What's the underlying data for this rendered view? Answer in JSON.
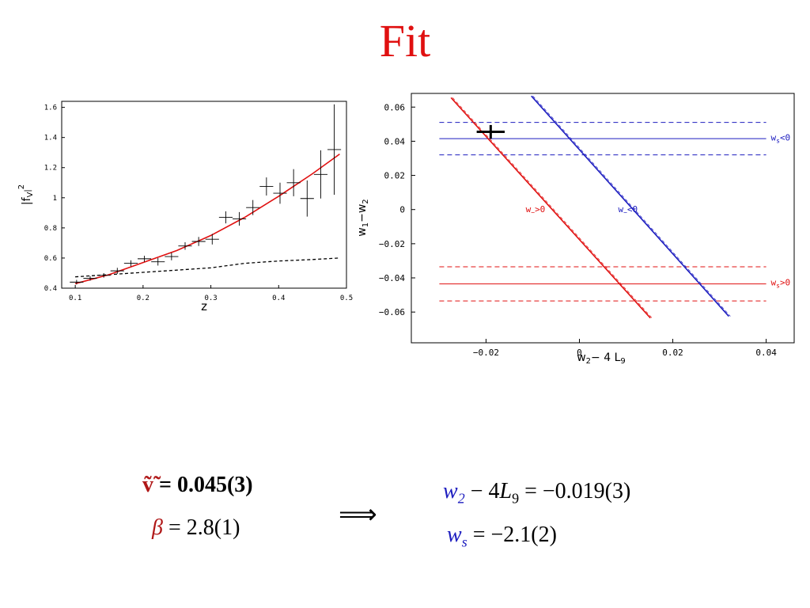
{
  "title": "Fit",
  "chart_data": [
    {
      "type": "scatter",
      "xlabel": "z",
      "ylabel": "|f_V|^2",
      "ylabel_main": "|f",
      "ylabel_sub": "V",
      "ylabel_sup": "2",
      "xlim": [
        0.08,
        0.5
      ],
      "ylim": [
        0.4,
        1.64
      ],
      "xticks": [
        0.1,
        0.2,
        0.3,
        0.4,
        0.5
      ],
      "xtick_labels": [
        "0.1",
        "0.2",
        "0.3",
        "0.4",
        "0.5"
      ],
      "yticks": [
        0.4,
        0.6,
        0.8,
        1.0,
        1.2,
        1.4,
        1.6
      ],
      "ytick_labels": [
        "0.4",
        "0.6",
        "0.8",
        "1",
        "1.2",
        "1.4",
        "1.6"
      ],
      "grid": false,
      "colors": {
        "fit": "#e01010",
        "data": "#000000",
        "dashed": "#000000"
      },
      "points": [
        {
          "x": 0.102,
          "y": 0.44,
          "ey": 0.015,
          "ex": 0.01
        },
        {
          "x": 0.122,
          "y": 0.465,
          "ey": 0.015,
          "ex": 0.01
        },
        {
          "x": 0.142,
          "y": 0.485,
          "ey": 0.015,
          "ex": 0.01
        },
        {
          "x": 0.162,
          "y": 0.515,
          "ey": 0.02,
          "ex": 0.01
        },
        {
          "x": 0.182,
          "y": 0.565,
          "ey": 0.02,
          "ex": 0.01
        },
        {
          "x": 0.202,
          "y": 0.595,
          "ey": 0.02,
          "ex": 0.01
        },
        {
          "x": 0.222,
          "y": 0.575,
          "ey": 0.025,
          "ex": 0.01
        },
        {
          "x": 0.242,
          "y": 0.61,
          "ey": 0.025,
          "ex": 0.01
        },
        {
          "x": 0.262,
          "y": 0.68,
          "ey": 0.025,
          "ex": 0.01
        },
        {
          "x": 0.282,
          "y": 0.71,
          "ey": 0.03,
          "ex": 0.01
        },
        {
          "x": 0.302,
          "y": 0.725,
          "ey": 0.035,
          "ex": 0.01
        },
        {
          "x": 0.322,
          "y": 0.87,
          "ey": 0.04,
          "ex": 0.01
        },
        {
          "x": 0.342,
          "y": 0.86,
          "ey": 0.045,
          "ex": 0.01
        },
        {
          "x": 0.362,
          "y": 0.935,
          "ey": 0.05,
          "ex": 0.01
        },
        {
          "x": 0.382,
          "y": 1.075,
          "ey": 0.06,
          "ex": 0.01
        },
        {
          "x": 0.402,
          "y": 1.03,
          "ey": 0.07,
          "ex": 0.01
        },
        {
          "x": 0.422,
          "y": 1.1,
          "ey": 0.09,
          "ex": 0.01
        },
        {
          "x": 0.442,
          "y": 0.995,
          "ey": 0.12,
          "ex": 0.01
        },
        {
          "x": 0.462,
          "y": 1.155,
          "ey": 0.16,
          "ex": 0.01
        },
        {
          "x": 0.482,
          "y": 1.32,
          "ey": 0.3,
          "ex": 0.01
        }
      ],
      "fit_curve": {
        "x": [
          0.1,
          0.15,
          0.2,
          0.25,
          0.3,
          0.35,
          0.4,
          0.45,
          0.49
        ],
        "y": [
          0.43,
          0.49,
          0.57,
          0.65,
          0.75,
          0.87,
          1.01,
          1.16,
          1.29
        ]
      },
      "dashed_curve": {
        "x": [
          0.1,
          0.15,
          0.2,
          0.25,
          0.3,
          0.35,
          0.4,
          0.45,
          0.49
        ],
        "y": [
          0.475,
          0.49,
          0.505,
          0.52,
          0.535,
          0.565,
          0.58,
          0.59,
          0.6
        ]
      }
    },
    {
      "type": "line",
      "xlabel": "w2-4L9",
      "xlabel_parts": [
        "w",
        "2",
        "− 4 L",
        "9"
      ],
      "ylabel": "w1-w2",
      "ylabel_parts": [
        "w",
        "1",
        "−w",
        "2"
      ],
      "xlim": [
        -0.036,
        0.046
      ],
      "ylim": [
        -0.078,
        0.068
      ],
      "xticks": [
        -0.02,
        0,
        0.02,
        0.04
      ],
      "xtick_labels": [
        "−0.02",
        "0",
        "0.02",
        "0.04"
      ],
      "yticks": [
        -0.06,
        -0.04,
        -0.02,
        0,
        0.02,
        0.04,
        0.06
      ],
      "ytick_labels": [
        "−0.06",
        "−0.04",
        "−0.02",
        "0",
        "0.02",
        "0.04",
        "0.06"
      ],
      "grid": false,
      "colors": {
        "red": "#e01010",
        "blue": "#1c1cbf",
        "cross": "#000000"
      },
      "hlines": [
        {
          "y": 0.051,
          "x": [
            -0.03,
            0.04
          ],
          "color": "#1c1cbf",
          "dashed": true
        },
        {
          "y": 0.0415,
          "x": [
            -0.03,
            0.04
          ],
          "color": "#1c1cbf",
          "dashed": false
        },
        {
          "y": 0.032,
          "x": [
            -0.03,
            0.04
          ],
          "color": "#1c1cbf",
          "dashed": true
        },
        {
          "y": -0.0335,
          "x": [
            -0.03,
            0.04
          ],
          "color": "#e01010",
          "dashed": true
        },
        {
          "y": -0.0435,
          "x": [
            -0.03,
            0.04
          ],
          "color": "#e01010",
          "dashed": false
        },
        {
          "y": -0.0535,
          "x": [
            -0.03,
            0.04
          ],
          "color": "#e01010",
          "dashed": true
        }
      ],
      "diag_lines": [
        {
          "x": [
            -0.0275,
            0.0152
          ],
          "y": [
            0.0655,
            -0.0635
          ],
          "color": "#e01010"
        },
        {
          "x": [
            -0.0103,
            0.032
          ],
          "y": [
            0.0665,
            -0.0625
          ],
          "color": "#1c1cbf"
        }
      ],
      "cross": {
        "x": -0.019,
        "y": 0.0455,
        "dx": 0.003,
        "dy": 0.004
      },
      "annotations": [
        {
          "text": "w_s<0",
          "main": "w",
          "sub": "s",
          "rest": "<0",
          "x": 0.041,
          "y": 0.0405,
          "color": "#1c1cbf"
        },
        {
          "text": "w_s>0",
          "main": "w",
          "sub": "s",
          "rest": ">0",
          "x": 0.041,
          "y": -0.0445,
          "color": "#e01010"
        },
        {
          "text": "w_->0",
          "main": "w",
          "sub": "−",
          "rest": ">0",
          "x": -0.0115,
          "y": -0.0015,
          "color": "#e01010"
        },
        {
          "text": "w_-<0",
          "main": "w",
          "sub": "−",
          "rest": "<0",
          "x": 0.0083,
          "y": -0.0015,
          "color": "#1c1cbf"
        }
      ]
    }
  ],
  "equations": {
    "w_tilde": "ṽ̃",
    "w_tilde_value": "= 0.045(3)",
    "beta": "β",
    "beta_value": "= 2.8(1)",
    "implies": "⟹",
    "eq1_w": "w",
    "eq1_w_sub": "2",
    "eq1_rest": " − 4",
    "eq1_L": "L",
    "eq1_L_sub": "9",
    "eq1_value": " = −0.019(3)",
    "eq2_w": "w",
    "eq2_w_sub": "s",
    "eq2_value": " = −2.1(2)"
  }
}
